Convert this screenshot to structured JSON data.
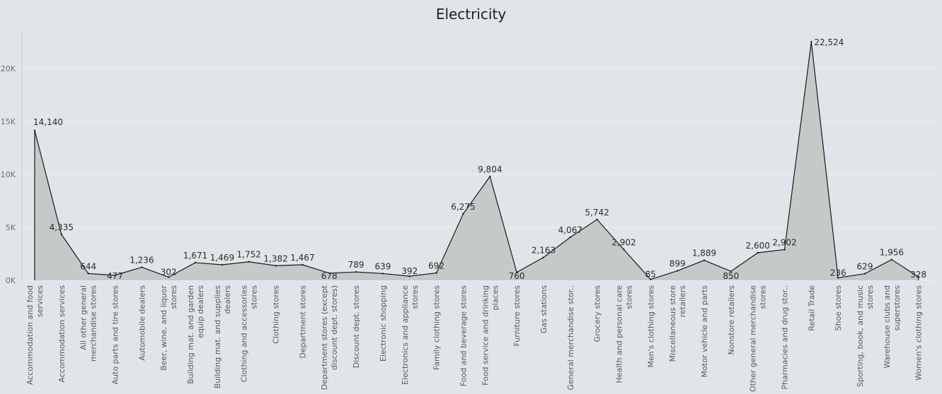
{
  "chart_data": {
    "type": "area",
    "title": "Electricity",
    "xlabel": "",
    "ylabel": "",
    "ylim": [
      0,
      24000
    ],
    "y_ticks": [
      {
        "value": 0,
        "label": "0K"
      },
      {
        "value": 5000,
        "label": "5K"
      },
      {
        "value": 10000,
        "label": "10K"
      },
      {
        "value": 15000,
        "label": "15K"
      },
      {
        "value": 20000,
        "label": "20K"
      }
    ],
    "grid": true,
    "fill_color": "#c5c9c8",
    "line_color": "#1a1a1a",
    "categories": [
      "Accommodation and food services",
      "Accommodation services",
      "All other general merchandise stores",
      "Auto parts and tire stores",
      "Automobile dealers",
      "Beer, wine, and liquor stores",
      "Building mat. and garden equip dealers",
      "Building mat. and supplies dealers",
      "Clothing and accessories stores",
      "Clothing stores",
      "Department stores",
      "Department stores (except discount dept. stores)",
      "Discount dept. stores",
      "Electronic shopping",
      "Electronics and appliance stores",
      "Family clothing stores",
      "Food and beverage stores",
      "Food service and drinking places",
      "Furniture stores",
      "Gas stations",
      "General merchandise stor..",
      "Grocery stores",
      "Health and personal care stores",
      "Men's clothing stores",
      "Miscellaneous store retailers",
      "Motor vehicle and parts",
      "Nonstore retailers",
      "Other general merchandise stores",
      "Pharmacies and drug stor..",
      "Retail Trade",
      "Shoe stores",
      "Sporting, book, and music stores",
      "Warehouse clubs and superstores",
      "Women's clothing stores"
    ],
    "values": [
      14140,
      4335,
      644,
      477,
      1236,
      302,
      1671,
      1469,
      1752,
      1382,
      1467,
      678,
      789,
      639,
      392,
      692,
      6275,
      9804,
      760,
      2163,
      4067,
      5742,
      2902,
      85,
      899,
      1889,
      850,
      2600,
      2902,
      22524,
      236,
      629,
      1956,
      328
    ],
    "data_labels": [
      "14,140",
      "4,335",
      "644",
      "477",
      "1,236",
      "302",
      "1,671",
      "1,469",
      "1,752",
      "1,382",
      "1,467",
      "678",
      "789",
      "639",
      "392",
      "692",
      "6,275",
      "9,804",
      "760",
      "2,163",
      "4,067",
      "5,742",
      "2,902",
      "85",
      "899",
      "1,889",
      "850",
      "2,600",
      "2,902",
      "22,524",
      "236",
      "629",
      "1,956",
      "328"
    ],
    "category_label_lines": [
      [
        "Accommodation and food",
        "services"
      ],
      [
        "Accommodation services"
      ],
      [
        "All other general",
        "merchandise stores"
      ],
      [
        "Auto parts and tire stores"
      ],
      [
        "Automobile dealers"
      ],
      [
        "Beer, wine, and liquor",
        "stores"
      ],
      [
        "Building mat. and garden",
        "equip dealers"
      ],
      [
        "Building mat. and supplies",
        "dealers"
      ],
      [
        "Clothing and accessories",
        "stores"
      ],
      [
        "Clothing stores"
      ],
      [
        "Department stores"
      ],
      [
        "Department stores (except",
        "discount dept. stores)"
      ],
      [
        "Discount dept. stores"
      ],
      [
        "Electronic shopping"
      ],
      [
        "Electronics and appliance",
        "stores"
      ],
      [
        "Family clothing stores"
      ],
      [
        "Food and beverage stores"
      ],
      [
        "Food service and drinking",
        "places"
      ],
      [
        "Furniture stores"
      ],
      [
        "Gas stations"
      ],
      [
        "General merchandise stor.."
      ],
      [
        "Grocery stores"
      ],
      [
        "Health and personal care",
        "stores"
      ],
      [
        "Men's clothing stores"
      ],
      [
        "Miscellaneous store",
        "retailers"
      ],
      [
        "Motor vehicle and parts"
      ],
      [
        "Nonstore retailers"
      ],
      [
        "Other general merchandise",
        "stores"
      ],
      [
        "Pharmacies and drug stor.."
      ],
      [
        "Retail Trade"
      ],
      [
        "Shoe stores"
      ],
      [
        "Sporting, book, and music",
        "stores"
      ],
      [
        "Warehouse clubs and",
        "superstores"
      ],
      [
        "Women's clothing stores"
      ]
    ]
  }
}
